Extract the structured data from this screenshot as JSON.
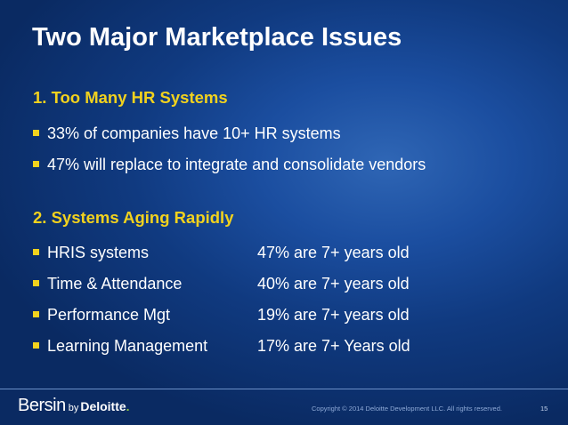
{
  "title": "Two Major Marketplace Issues",
  "section1": {
    "heading": "1. Too Many HR Systems",
    "bullets": [
      "33% of companies have 10+ HR systems",
      "47% will replace to integrate and consolidate vendors"
    ]
  },
  "section2": {
    "heading": "2. Systems Aging Rapidly",
    "rows": [
      {
        "label": "HRIS systems",
        "value": "47% are 7+ years old"
      },
      {
        "label": "Time & Attendance",
        "value": "40% are 7+ years old"
      },
      {
        "label": "Performance Mgt",
        "value": "19% are 7+ years old"
      },
      {
        "label": "Learning Management",
        "value": "17% are 7+ Years old"
      }
    ]
  },
  "footer": {
    "logo_brand": "Bersin",
    "logo_by": "by",
    "logo_company": "Deloitte",
    "logo_dot": ".",
    "copyright": "Copyright © 2014 Deloitte Development LLC. All rights reserved.",
    "page_number": "15"
  },
  "colors": {
    "background": "#1b4ea0",
    "heading": "#f2d21e",
    "text": "#ffffff",
    "logo_dot": "#8dc63f"
  }
}
